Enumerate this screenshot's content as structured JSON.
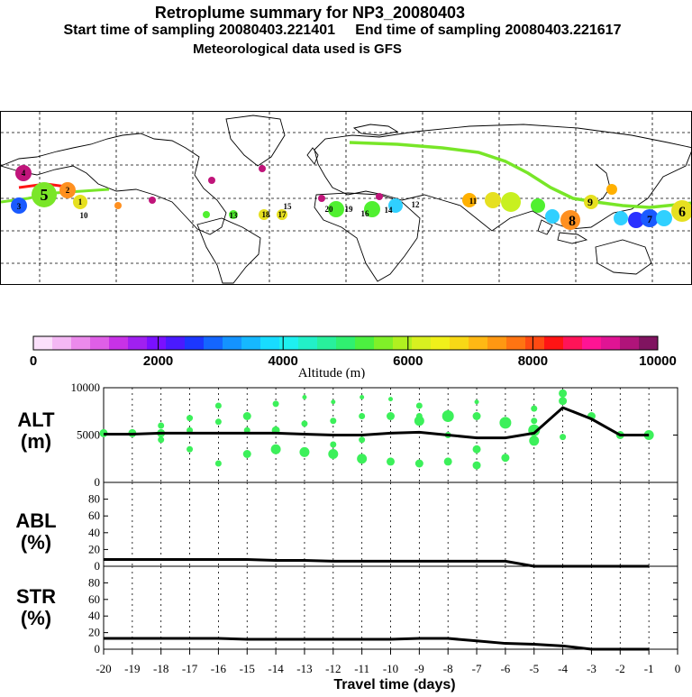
{
  "header": {
    "title": "Retroplume summary for NP3_20080403",
    "subtitle1": "Start time of sampling 20080403.221401     End time of sampling 20080403.221617",
    "subtitle2": "Meteorological data used is GFS"
  },
  "colorbar": {
    "ticks": [
      "0",
      "2000",
      "4000",
      "6000",
      "8000",
      "10000"
    ],
    "label": "Altitude (m)",
    "colors": [
      "#fbe0fb",
      "#f4b8f4",
      "#eb8aeb",
      "#df5fe6",
      "#c832e6",
      "#a020f0",
      "#7a10ff",
      "#4a1aff",
      "#1c37ff",
      "#1466ff",
      "#1493ff",
      "#16b8ff",
      "#18dcff",
      "#1ef0f0",
      "#22f0c8",
      "#28f09c",
      "#30f070",
      "#4cf040",
      "#80f028",
      "#b0f020",
      "#d8f020",
      "#f0f01a",
      "#f8d816",
      "#ffb814",
      "#ff9812",
      "#ff7412",
      "#ff4a12",
      "#ff1414",
      "#ff1458",
      "#ff1494",
      "#e01494",
      "#b0147a",
      "#801460"
    ]
  },
  "map": {
    "day_labels": [
      {
        "t": "4",
        "c": "#c0147a"
      },
      {
        "t": "5",
        "c": "#7ae628"
      },
      {
        "t": "3",
        "c": "#1a5aff"
      },
      {
        "t": "2",
        "c": "#ff9020"
      },
      {
        "t": "1",
        "c": "#e6e020"
      },
      {
        "t": "20",
        "c": "#e6e020"
      },
      {
        "t": "19",
        "c": "#50f030"
      },
      {
        "t": "18",
        "c": "#e6e020"
      },
      {
        "t": "17",
        "c": "#e6e020"
      },
      {
        "t": "16",
        "c": "#ffb000"
      },
      {
        "t": "15",
        "c": "#e6e020"
      },
      {
        "t": "14",
        "c": "#ffb000"
      },
      {
        "t": "13",
        "c": "#50f030"
      },
      {
        "t": "12",
        "c": "#50f030"
      },
      {
        "t": "11",
        "c": "#e6e020"
      },
      {
        "t": "10",
        "c": "#ffb000"
      },
      {
        "t": "9",
        "c": "#ffb000"
      },
      {
        "t": "8",
        "c": "#ff9020"
      },
      {
        "t": "7",
        "c": "#30d0ff"
      },
      {
        "t": "6",
        "c": "#2a30ff"
      }
    ]
  },
  "panels": {
    "alt": {
      "label_top": "ALT",
      "label_bottom": "(m)",
      "yticks": [
        "10000",
        "5000",
        "0"
      ]
    },
    "abl": {
      "label_top": "ABL",
      "label_bottom": "(%)",
      "yticks": [
        "80",
        "60",
        "40",
        "20",
        "0"
      ]
    },
    "str": {
      "label_top": "STR",
      "label_bottom": "(%)",
      "yticks": [
        "80",
        "60",
        "40",
        "20",
        "0"
      ]
    }
  },
  "xaxis": {
    "ticks": [
      "-20",
      "-19",
      "-18",
      "-17",
      "-16",
      "-15",
      "-14",
      "-13",
      "-12",
      "-11",
      "-10",
      "-9",
      "-8",
      "-7",
      "-6",
      "-5",
      "-4",
      "-3",
      "-2",
      "-1",
      "0"
    ],
    "label": "Travel time (days)"
  },
  "chart_data": [
    {
      "type": "line",
      "title": "ALT (m)",
      "xlabel": "Travel time (days)",
      "ylabel": "ALT (m)",
      "ylim": [
        0,
        10000
      ],
      "xlim": [
        -20,
        0
      ],
      "series": [
        {
          "name": "mean altitude",
          "x": [
            -20,
            -19,
            -18,
            -17,
            -16,
            -15,
            -14,
            -13,
            -12,
            -11,
            -10,
            -9,
            -8,
            -7,
            -6,
            -5,
            -4,
            -3,
            -2,
            -1
          ],
          "values": [
            5100,
            5100,
            5200,
            5200,
            5200,
            5200,
            5200,
            5100,
            5000,
            5000,
            5200,
            5300,
            5000,
            4700,
            4700,
            5200,
            7900,
            6700,
            5000,
            5000
          ]
        }
      ],
      "scatter": [
        {
          "x": -20,
          "y": 5200,
          "s": 3
        },
        {
          "x": -19,
          "y": 5200,
          "s": 3
        },
        {
          "x": -18,
          "y": 5200,
          "s": 3
        },
        {
          "x": -18,
          "y": 6000,
          "s": 2
        },
        {
          "x": -18,
          "y": 4500,
          "s": 2
        },
        {
          "x": -17,
          "y": 6800,
          "s": 2
        },
        {
          "x": -17,
          "y": 3500,
          "s": 2
        },
        {
          "x": -17,
          "y": 5500,
          "s": 2
        },
        {
          "x": -16,
          "y": 8100,
          "s": 2
        },
        {
          "x": -16,
          "y": 6400,
          "s": 2
        },
        {
          "x": -16,
          "y": 2000,
          "s": 2
        },
        {
          "x": -15,
          "y": 7000,
          "s": 3
        },
        {
          "x": -15,
          "y": 3000,
          "s": 3
        },
        {
          "x": -15,
          "y": 5500,
          "s": 2
        },
        {
          "x": -14,
          "y": 8300,
          "s": 2
        },
        {
          "x": -14,
          "y": 3500,
          "s": 4
        },
        {
          "x": -14,
          "y": 5500,
          "s": 3
        },
        {
          "x": -13,
          "y": 9000,
          "s": 1
        },
        {
          "x": -13,
          "y": 6200,
          "s": 2
        },
        {
          "x": -13,
          "y": 3200,
          "s": 4
        },
        {
          "x": -12,
          "y": 8500,
          "s": 1
        },
        {
          "x": -12,
          "y": 6500,
          "s": 2
        },
        {
          "x": -12,
          "y": 4000,
          "s": 2
        },
        {
          "x": -12,
          "y": 3000,
          "s": 4
        },
        {
          "x": -11,
          "y": 9000,
          "s": 1
        },
        {
          "x": -11,
          "y": 7000,
          "s": 2
        },
        {
          "x": -11,
          "y": 2500,
          "s": 4
        },
        {
          "x": -11,
          "y": 4500,
          "s": 2
        },
        {
          "x": -10,
          "y": 8800,
          "s": 1
        },
        {
          "x": -10,
          "y": 7000,
          "s": 3
        },
        {
          "x": -10,
          "y": 2200,
          "s": 3
        },
        {
          "x": -9,
          "y": 8100,
          "s": 2
        },
        {
          "x": -9,
          "y": 6500,
          "s": 4
        },
        {
          "x": -9,
          "y": 2000,
          "s": 3
        },
        {
          "x": -9,
          "y": 7000,
          "s": 2
        },
        {
          "x": -8,
          "y": 7000,
          "s": 5
        },
        {
          "x": -8,
          "y": 2200,
          "s": 3
        },
        {
          "x": -8,
          "y": 5000,
          "s": 2
        },
        {
          "x": -7,
          "y": 8500,
          "s": 1
        },
        {
          "x": -7,
          "y": 7000,
          "s": 3
        },
        {
          "x": -7,
          "y": 3500,
          "s": 3
        },
        {
          "x": -7,
          "y": 1800,
          "s": 3
        },
        {
          "x": -6,
          "y": 6300,
          "s": 5
        },
        {
          "x": -6,
          "y": 2600,
          "s": 3
        },
        {
          "x": -5,
          "y": 7800,
          "s": 2
        },
        {
          "x": -5,
          "y": 6500,
          "s": 2
        },
        {
          "x": -5,
          "y": 5500,
          "s": 5
        },
        {
          "x": -5,
          "y": 4400,
          "s": 4
        },
        {
          "x": -4,
          "y": 9400,
          "s": 3
        },
        {
          "x": -4,
          "y": 8600,
          "s": 3
        },
        {
          "x": -4,
          "y": 4800,
          "s": 2
        },
        {
          "x": -3,
          "y": 7000,
          "s": 3
        },
        {
          "x": -2,
          "y": 5000,
          "s": 3
        },
        {
          "x": -1,
          "y": 5000,
          "s": 4
        }
      ]
    },
    {
      "type": "line",
      "title": "ABL (%)",
      "xlabel": "Travel time (days)",
      "ylabel": "ABL (%)",
      "ylim": [
        0,
        100
      ],
      "xlim": [
        -20,
        0
      ],
      "series": [
        {
          "name": "ABL",
          "x": [
            -20,
            -19,
            -18,
            -17,
            -16,
            -15,
            -14,
            -13,
            -12,
            -11,
            -10,
            -9,
            -8,
            -7,
            -6,
            -5,
            -4,
            -3,
            -2,
            -1
          ],
          "values": [
            8,
            8,
            8,
            8,
            8,
            8,
            7,
            7,
            6,
            6,
            6,
            6,
            6,
            6,
            6,
            0,
            0,
            0,
            0,
            0
          ]
        }
      ]
    },
    {
      "type": "line",
      "title": "STR (%)",
      "xlabel": "Travel time (days)",
      "ylabel": "STR (%)",
      "ylim": [
        0,
        100
      ],
      "xlim": [
        -20,
        0
      ],
      "series": [
        {
          "name": "STR",
          "x": [
            -20,
            -19,
            -18,
            -17,
            -16,
            -15,
            -14,
            -13,
            -12,
            -11,
            -10,
            -9,
            -8,
            -7,
            -6,
            -5,
            -4,
            -3,
            -2,
            -1
          ],
          "values": [
            13,
            13,
            13,
            13,
            13,
            12,
            12,
            12,
            12,
            12,
            12,
            13,
            13,
            10,
            7,
            6,
            4,
            0,
            0,
            0
          ]
        }
      ]
    }
  ]
}
